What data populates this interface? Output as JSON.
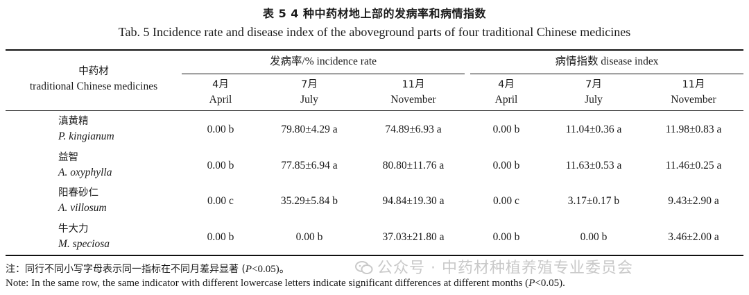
{
  "title_cn": "表 5   4 种中药材地上部的发病率和病情指数",
  "title_en": "Tab. 5    Incidence rate and disease index of the aboveground parts of four traditional Chinese medicines",
  "header": {
    "col_cn": "中药材",
    "col_en": "traditional Chinese medicines",
    "group1": "发病率/% incidence rate",
    "group2": "病情指数 disease index",
    "months": [
      {
        "cn": "4月",
        "en": "April"
      },
      {
        "cn": "7月",
        "en": "July"
      },
      {
        "cn": "11月",
        "en": "November"
      },
      {
        "cn": "4月",
        "en": "April"
      },
      {
        "cn": "7月",
        "en": "July"
      },
      {
        "cn": "11月",
        "en": "November"
      }
    ]
  },
  "rows": [
    {
      "cn": "滇黄精",
      "sci": "P. kingianum",
      "values": [
        "0.00 b",
        "79.80±4.29 a",
        "74.89±6.93 a",
        "0.00 b",
        "11.04±0.36 a",
        "11.98±0.83 a"
      ]
    },
    {
      "cn": "益智",
      "sci": "A. oxyphylla",
      "values": [
        "0.00 b",
        "77.85±6.94 a",
        "80.80±11.76 a",
        "0.00 b",
        "11.63±0.53 a",
        "11.46±0.25 a"
      ]
    },
    {
      "cn": "阳春砂仁",
      "sci": "A. villosum",
      "values": [
        "0.00 c",
        "35.29±5.84 b",
        "94.84±19.30 a",
        "0.00 c",
        "3.17±0.17 b",
        "9.43±2.90 a"
      ]
    },
    {
      "cn": "牛大力",
      "sci": "M. speciosa",
      "values": [
        "0.00 b",
        "0.00 b",
        "37.03±21.80 a",
        "0.00 b",
        "0.00 b",
        "3.46±2.00 a"
      ]
    }
  ],
  "note_cn_pre": "注：同行不同小写字母表示同一指标在不同月差异显著 (",
  "note_cn_p": "P",
  "note_cn_post": "<0.05)。",
  "note_en_pre": "Note: In the same row, the same indicator with different lowercase letters indicate significant differences at different months (",
  "note_en_p": "P",
  "note_en_post": "<0.05).",
  "watermark": "公众号 · 中药材种植养殖专业委员会"
}
